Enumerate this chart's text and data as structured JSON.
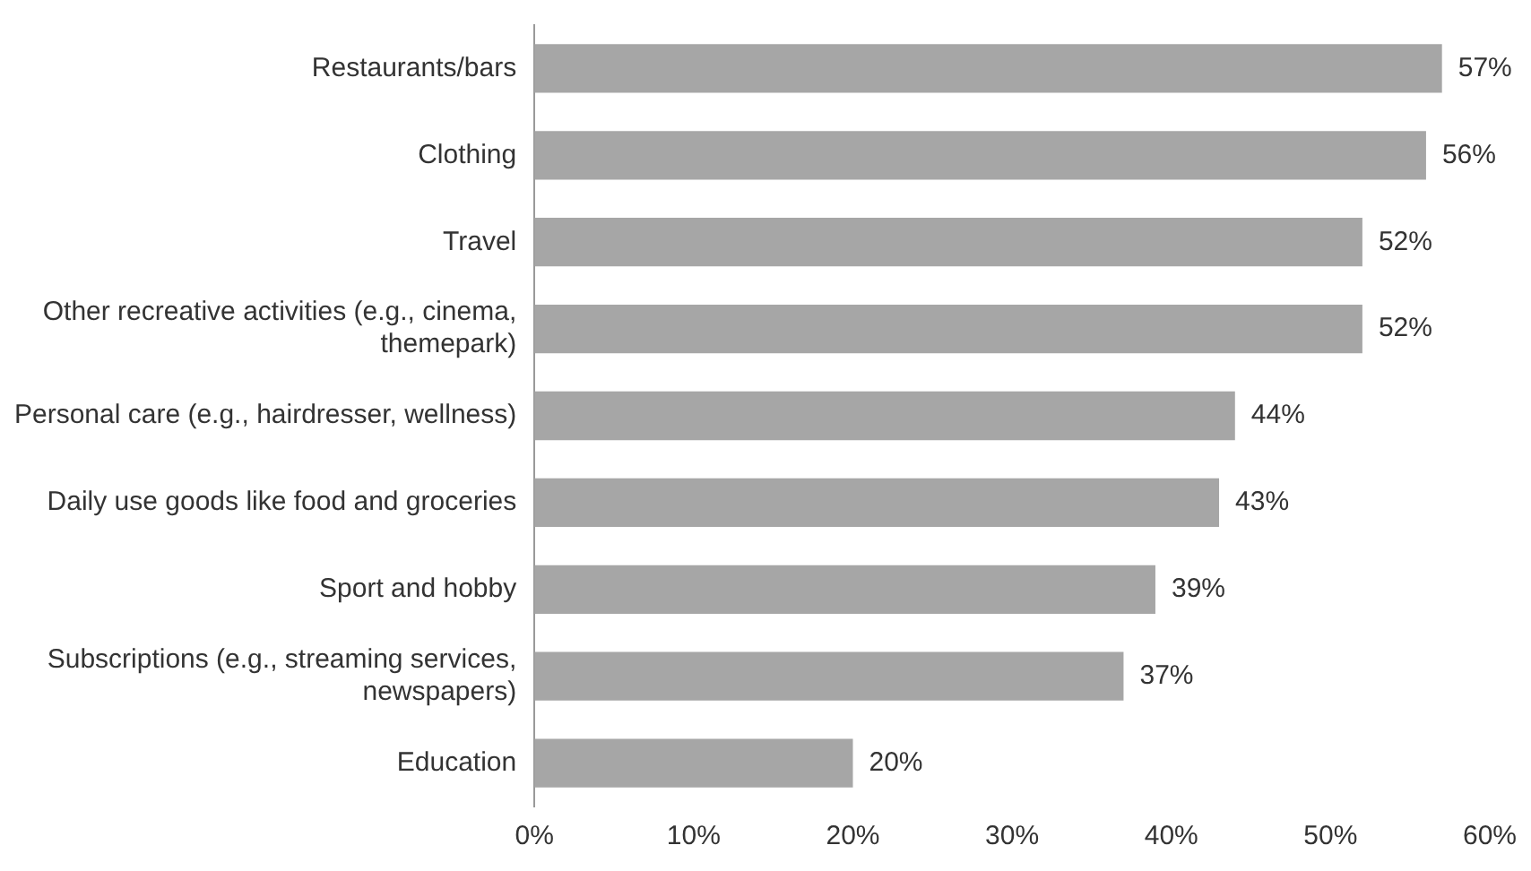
{
  "chart_data": {
    "type": "bar",
    "orientation": "horizontal",
    "categories": [
      "Restaurants/bars",
      "Clothing",
      "Travel",
      "Other recreative activities (e.g., cinema, themepark)",
      "Personal care (e.g., hairdresser, wellness)",
      "Daily use goods like food and groceries",
      "Sport and hobby",
      "Subscriptions (e.g., streaming services, newspapers)",
      "Education"
    ],
    "values": [
      57,
      56,
      52,
      52,
      44,
      43,
      39,
      37,
      20
    ],
    "value_labels": [
      "57%",
      "56%",
      "52%",
      "52%",
      "44%",
      "43%",
      "39%",
      "37%",
      "20%"
    ],
    "color": "#a6a6a6",
    "xlim": [
      0,
      60
    ],
    "xticks": [
      {
        "value": 0,
        "label": "0%"
      },
      {
        "value": 10,
        "label": "10%"
      },
      {
        "value": 20,
        "label": "20%"
      },
      {
        "value": 30,
        "label": "30%"
      },
      {
        "value": 40,
        "label": "40%"
      },
      {
        "value": 50,
        "label": "50%"
      },
      {
        "value": 60,
        "label": "60%"
      }
    ],
    "grid": false,
    "legend": false
  }
}
